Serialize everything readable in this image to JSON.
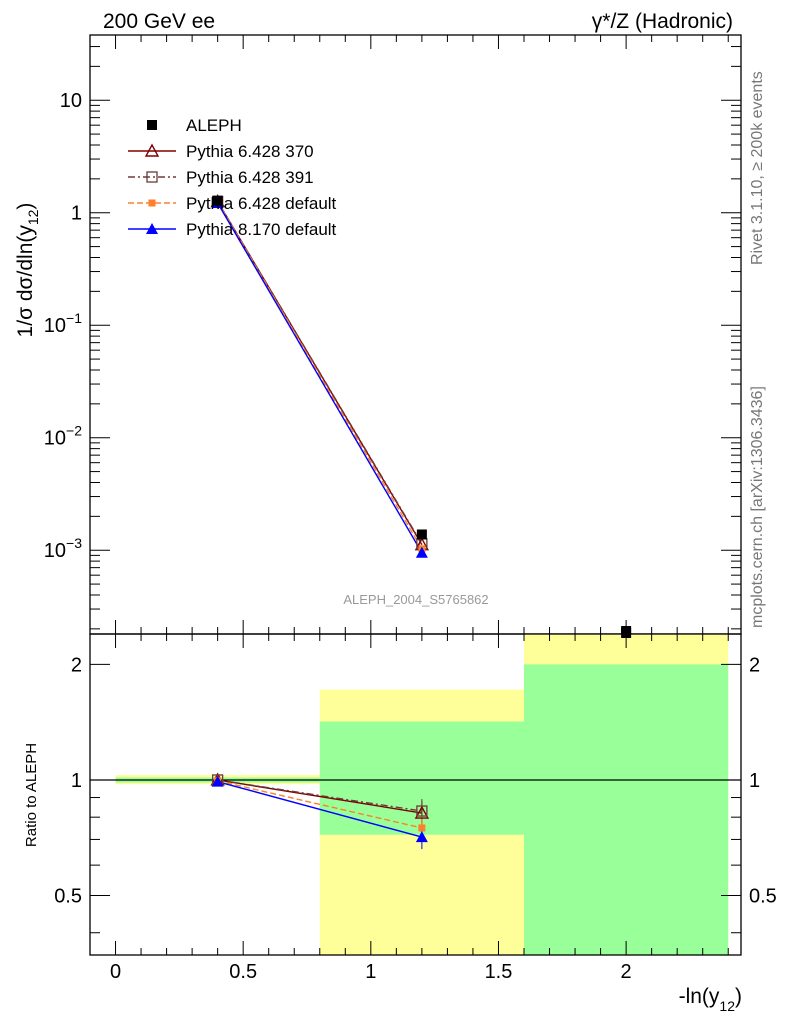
{
  "header": {
    "left": "200 GeV ee",
    "right": "γ*/Z (Hadronic)"
  },
  "side_text": {
    "rivet": "Rivet 3.1.10, ≥ 200k events",
    "mcplots": "mcplots.cern.ch [arXiv:1306.3436]"
  },
  "analysis_id": "ALEPH_2004_S5765862",
  "colors": {
    "data": "#000000",
    "p370": "#7f0000",
    "p391": "#6b3b3b",
    "p6def": "#ff7f2a",
    "p8def": "#0000ff",
    "band_yellow": "#ffff99",
    "band_green": "#99ff99"
  },
  "chart_data": [
    {
      "type": "line",
      "panel": "main",
      "ylabel": "1/σ  dσ/dln(y12)",
      "yscale": "log",
      "xlim": [
        -0.1,
        2.45
      ],
      "ylim": [
        0.00018,
        38
      ],
      "ytick_labels": [
        "10",
        "1",
        "10−1",
        "10−2",
        "10−3"
      ],
      "legend_position": "top-left",
      "legend": [
        {
          "key": "data",
          "label": "ALEPH"
        },
        {
          "key": "p370",
          "label": "Pythia 6.428 370"
        },
        {
          "key": "p391",
          "label": "Pythia 6.428 391"
        },
        {
          "key": "p6def",
          "label": "Pythia 6.428 default"
        },
        {
          "key": "p8def",
          "label": "Pythia 8.170 default"
        }
      ],
      "data_points": [
        {
          "x": 0.4,
          "y": 1.28
        },
        {
          "x": 1.2,
          "y": 0.00138
        },
        {
          "x": 2.0,
          "y": 0.00017
        }
      ],
      "series": [
        {
          "key": "p370",
          "name": "Pythia 6.428 370",
          "x": [
            0.4,
            1.2
          ],
          "y": [
            1.26,
            0.00112
          ]
        },
        {
          "key": "p391",
          "name": "Pythia 6.428 391",
          "x": [
            0.4,
            1.2
          ],
          "y": [
            1.26,
            0.00114
          ]
        },
        {
          "key": "p6def",
          "name": "Pythia 6.428 default",
          "x": [
            0.4,
            1.2
          ],
          "y": [
            1.25,
            0.00103
          ]
        },
        {
          "key": "p8def",
          "name": "Pythia 8.170 default",
          "x": [
            0.4,
            1.2
          ],
          "y": [
            1.22,
            0.00095
          ]
        }
      ]
    },
    {
      "type": "line",
      "panel": "ratio",
      "ylabel": "Ratio to ALEPH",
      "xlabel": "-ln(y12)",
      "yscale": "log",
      "xlim": [
        -0.1,
        2.45
      ],
      "ylim": [
        0.35,
        2.4
      ],
      "xticks": [
        0,
        0.5,
        1,
        1.5,
        2
      ],
      "xtick_labels": [
        "0",
        "0.5",
        "1",
        "1.5",
        "2"
      ],
      "yticks": [
        0.5,
        1,
        2
      ],
      "ytick_labels": [
        "0.5",
        "1",
        "2"
      ],
      "bands": [
        {
          "x0": 0.0,
          "x1": 0.8,
          "yellow": [
            0.975,
            1.03
          ],
          "green": [
            0.985,
            1.015
          ]
        },
        {
          "x0": 0.8,
          "x1": 1.6,
          "yellow": [
            0.35,
            1.72
          ],
          "green": [
            0.72,
            1.42
          ]
        },
        {
          "x0": 1.6,
          "x1": 2.4,
          "yellow": [
            0.35,
            2.4
          ],
          "green": [
            0.35,
            2.0
          ]
        }
      ],
      "series": [
        {
          "key": "p370",
          "name": "Pythia 6.428 370",
          "x": [
            0.4,
            1.2
          ],
          "y": [
            1.0,
            0.82
          ]
        },
        {
          "key": "p391",
          "name": "Pythia 6.428 391",
          "x": [
            0.4,
            1.2
          ],
          "y": [
            1.0,
            0.83
          ]
        },
        {
          "key": "p6def",
          "name": "Pythia 6.428 default",
          "x": [
            0.4,
            1.2
          ],
          "y": [
            0.995,
            0.75
          ]
        },
        {
          "key": "p8def",
          "name": "Pythia 8.170 default",
          "x": [
            0.4,
            1.2
          ],
          "y": [
            0.99,
            0.71
          ]
        }
      ]
    }
  ]
}
